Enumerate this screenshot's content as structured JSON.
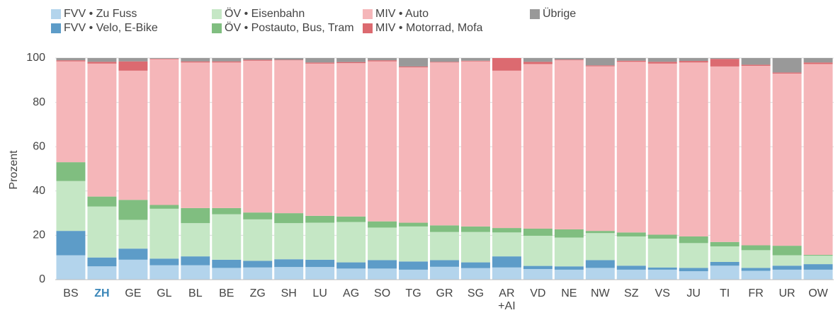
{
  "chart_data": {
    "type": "stacked_bar",
    "y_label": "Prozent",
    "categories": [
      "BS",
      "ZH",
      "GE",
      "GL",
      "BL",
      "BE",
      "ZG",
      "SH",
      "LU",
      "AG",
      "SO",
      "TG",
      "GR",
      "SG",
      "AR\n+AI",
      "VD",
      "NE",
      "NW",
      "SZ",
      "VS",
      "JU",
      "TI",
      "FR",
      "UR",
      "OW"
    ],
    "highlight": "ZH",
    "highlight_color": "#3a86b8",
    "ylim": [
      0,
      100
    ],
    "yticks": [
      0,
      20,
      40,
      60,
      80,
      100
    ],
    "grid": true,
    "series": [
      {
        "name": "FVV • Zu Fuss",
        "color": "#b3d4ec",
        "values": [
          11,
          6,
          9,
          6.5,
          6.5,
          5.3,
          5.5,
          5.7,
          5.7,
          5,
          5,
          4.5,
          5.8,
          5.2,
          5.5,
          4.8,
          4.5,
          5.3,
          4.5,
          4.5,
          3.8,
          6.3,
          4,
          4.5,
          4.5
        ]
      },
      {
        "name": "FVV • Velo, E-Bike",
        "color": "#5d9cc8",
        "values": [
          11,
          4,
          5,
          3,
          4,
          3.7,
          3,
          3.5,
          3.3,
          2.8,
          3.8,
          3.7,
          3,
          2.6,
          5,
          1.4,
          1.5,
          3.5,
          1.8,
          1,
          1.5,
          1.7,
          1.3,
          1.8,
          2.5
        ]
      },
      {
        "name": "ÖV • Eisenbahn",
        "color": "#c5e7c5",
        "values": [
          22.5,
          23,
          13,
          22.5,
          15,
          20.5,
          18.7,
          16.3,
          16.7,
          18.2,
          14.7,
          15.8,
          12.7,
          13.7,
          10.8,
          13.6,
          13,
          12.2,
          13.2,
          13,
          11.2,
          7,
          8,
          4.7,
          3.8
        ]
      },
      {
        "name": "ÖV • Postauto, Bus, Tram",
        "color": "#80be80",
        "values": [
          8.5,
          4.5,
          9,
          1.7,
          6.8,
          2.8,
          3.1,
          4.5,
          3.1,
          2.5,
          2.8,
          1.7,
          3,
          2.5,
          2,
          3.2,
          3.7,
          1,
          1.8,
          1.8,
          3,
          2,
          2.2,
          4.3,
          0.4
        ]
      },
      {
        "name": "MIV • Auto",
        "color": "#f5b6b9",
        "values": [
          45.5,
          60,
          58.3,
          65.8,
          65.7,
          65.7,
          68.5,
          69,
          68.7,
          69.2,
          72.2,
          70.1,
          73.5,
          74.5,
          71,
          74.3,
          76.3,
          74.3,
          77,
          77.2,
          78.5,
          79.2,
          81,
          77.7,
          86.1
        ]
      },
      {
        "name": "MIV • Motorrad, Mofa",
        "color": "#dc6a70",
        "values": [
          0.5,
          0.8,
          4.2,
          0.2,
          0.5,
          0.5,
          0.4,
          0.2,
          0.5,
          0.5,
          0.5,
          0.4,
          0.3,
          0.3,
          5.7,
          1,
          0.3,
          0.4,
          0.5,
          0.8,
          0.7,
          3.4,
          0.5,
          0.5,
          0.7
        ]
      },
      {
        "name": "Übrige",
        "color": "#999999",
        "values": [
          1,
          1.7,
          1.5,
          0.3,
          1.5,
          1.5,
          0.8,
          0.8,
          2,
          1.8,
          1,
          3.8,
          1.7,
          1.2,
          0,
          1.7,
          0.7,
          3.3,
          1.2,
          1.7,
          1.3,
          0.4,
          3,
          6.5,
          2
        ]
      }
    ]
  }
}
